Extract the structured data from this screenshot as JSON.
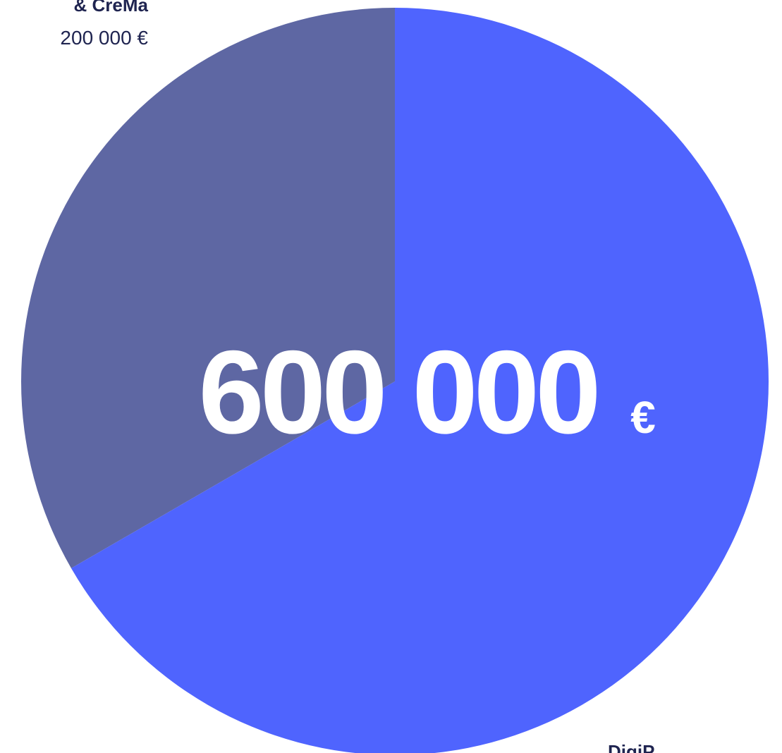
{
  "chart_data": {
    "type": "pie",
    "total": {
      "amount": "600 000",
      "currency": "€"
    },
    "slices": [
      {
        "name": "& CreMa",
        "value": 200000,
        "value_label": "200 000 €",
        "color": "#5e67a3"
      },
      {
        "name": "DigiP...",
        "value": 400000,
        "value_label": "",
        "color": "#4f64fe"
      }
    ],
    "label_color": "#1f2450",
    "center_text_color": "#ffffff"
  }
}
